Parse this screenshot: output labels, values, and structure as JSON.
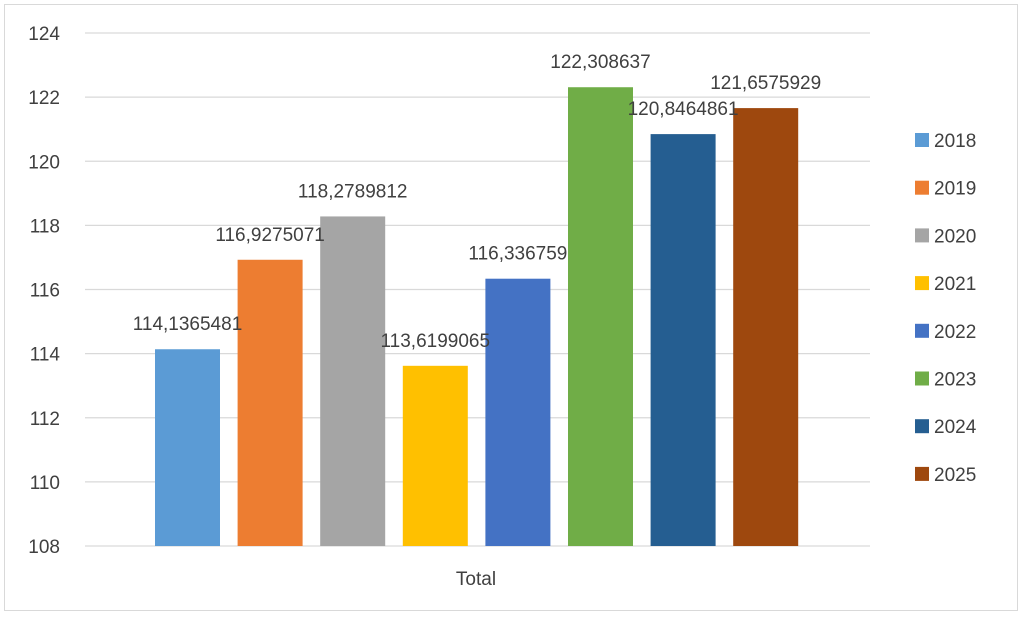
{
  "chart_data": {
    "type": "bar",
    "title": "",
    "xlabel": "",
    "ylabel": "",
    "categories": [
      "Total"
    ],
    "ylim": [
      108,
      124
    ],
    "yticks": [
      "108",
      "110",
      "112",
      "114",
      "116",
      "118",
      "120",
      "122",
      "124"
    ],
    "grid": true,
    "legend_position": "right",
    "series": [
      {
        "name": "2018",
        "values": [
          114.1365481
        ],
        "label": "114,1365481",
        "color": "#5B9BD5"
      },
      {
        "name": "2019",
        "values": [
          116.9275071
        ],
        "label": "116,9275071",
        "color": "#ED7D31"
      },
      {
        "name": "2020",
        "values": [
          118.2789812
        ],
        "label": "118,2789812",
        "color": "#A5A5A5"
      },
      {
        "name": "2021",
        "values": [
          113.6199065
        ],
        "label": "113,6199065",
        "color": "#FFC000"
      },
      {
        "name": "2022",
        "values": [
          116.336759
        ],
        "label": "116,336759",
        "color": "#4472C4"
      },
      {
        "name": "2023",
        "values": [
          122.308637
        ],
        "label": "122,308637",
        "color": "#70AD47"
      },
      {
        "name": "2024",
        "values": [
          120.8464861
        ],
        "label": "120,8464861",
        "color": "#255E91"
      },
      {
        "name": "2025",
        "values": [
          121.6575929
        ],
        "label": "121,6575929",
        "color": "#9E480E"
      }
    ]
  }
}
